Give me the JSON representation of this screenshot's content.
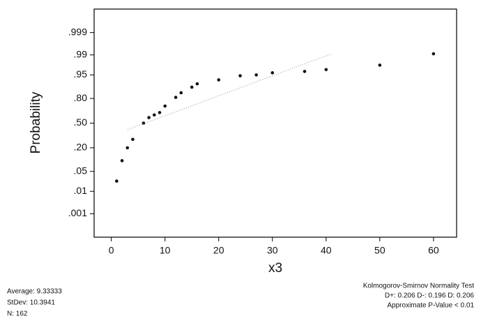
{
  "chart_data": {
    "type": "probability",
    "y_label": "Probability",
    "x_label": "x3",
    "xlim": [
      -3.2,
      64.3
    ],
    "xticks": [
      0,
      10,
      20,
      30,
      40,
      50,
      60
    ],
    "ylim": [
      5e-05,
      0.99995
    ],
    "yscale": "normal-probability",
    "yticks": [
      {
        "value": 0.999,
        "label": ".999"
      },
      {
        "value": 0.99,
        "label": ".99"
      },
      {
        "value": 0.95,
        "label": ".95"
      },
      {
        "value": 0.8,
        "label": ".80"
      },
      {
        "value": 0.5,
        "label": ".50"
      },
      {
        "value": 0.2,
        "label": ".20"
      },
      {
        "value": 0.05,
        "label": ".05"
      },
      {
        "value": 0.01,
        "label": ".01"
      },
      {
        "value": 0.001,
        "label": ".001"
      }
    ],
    "series": [
      {
        "color": "#111111",
        "style": "points",
        "x": [
          1,
          2,
          3,
          4,
          6,
          7,
          8,
          9,
          10,
          12,
          13,
          15,
          16,
          20,
          24,
          27,
          30,
          36,
          40,
          50,
          60
        ],
        "values": [
          0.024,
          0.1,
          0.2,
          0.29,
          0.5,
          0.575,
          0.61,
          0.64,
          0.72,
          0.81,
          0.85,
          0.89,
          0.91,
          0.93,
          0.947,
          0.95,
          0.957,
          0.961,
          0.966,
          0.976,
          0.991
        ]
      },
      {
        "color": "#999999",
        "style": "dotted-line",
        "x": [
          3,
          41
        ],
        "values": [
          0.41,
          0.991
        ]
      }
    ],
    "annotations_left": [
      "Average: 9.33333",
      "StDev: 10.3941",
      "N: 162"
    ],
    "annotations_right": [
      "Kolmogorov-Smirnov Normality Test",
      "D+: 0.206  D-: 0.196  D: 0.206",
      "Approximate P-Value < 0.01"
    ]
  }
}
